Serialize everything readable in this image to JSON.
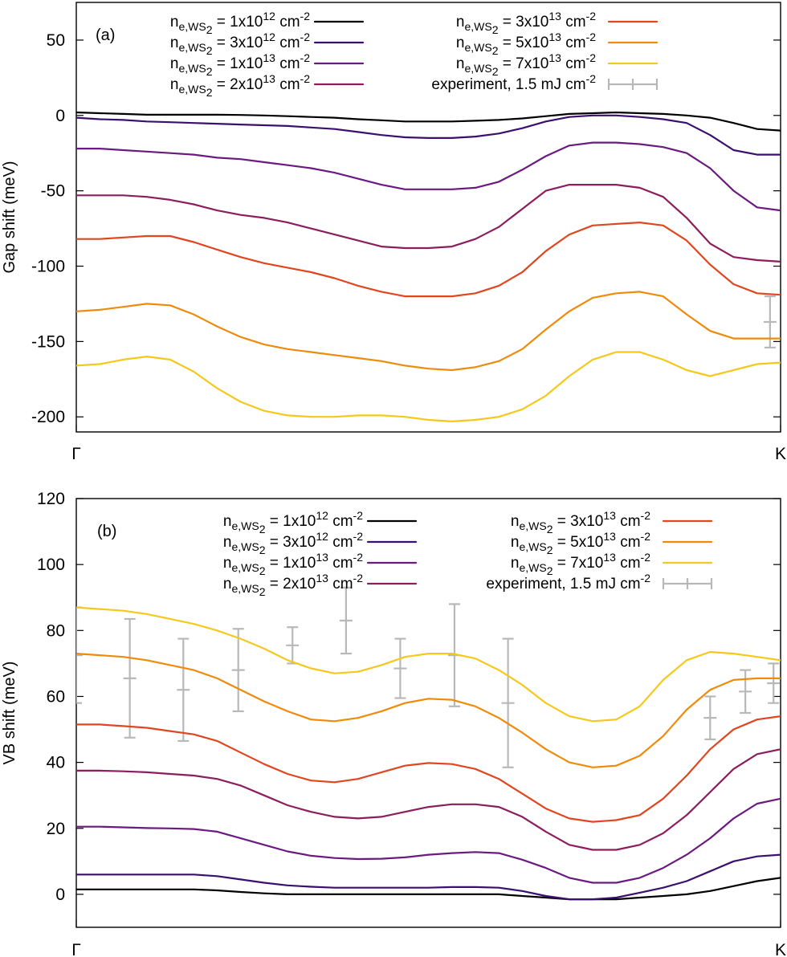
{
  "figure": {
    "panels": [
      "(a)",
      "(b)"
    ]
  },
  "chart_data": [
    {
      "type": "line",
      "panel_label": "(a)",
      "title": "",
      "xlabel": "",
      "ylabel": "Gap shift (meV)",
      "x_tick_labels": [
        "Γ",
        "K"
      ],
      "xlim": [
        0,
        1
      ],
      "ylim": [
        -210,
        75
      ],
      "y_ticks": [
        -200,
        -150,
        -100,
        -50,
        0,
        50
      ],
      "x": [
        0,
        0.0333,
        0.0667,
        0.1,
        0.1333,
        0.1667,
        0.2,
        0.2333,
        0.2667,
        0.3,
        0.3333,
        0.3667,
        0.4,
        0.4333,
        0.4667,
        0.5,
        0.5333,
        0.5667,
        0.6,
        0.6333,
        0.6667,
        0.7,
        0.7333,
        0.7667,
        0.8,
        0.8333,
        0.8667,
        0.9,
        0.9333,
        0.9667,
        1.0
      ],
      "series": [
        {
          "name_base": "n",
          "name_sub": "e,WS",
          "name_subsub": "2",
          "name_text": " = 1x10",
          "name_exp": "12",
          "name_unit": " cm",
          "name_unit_exp": "-2",
          "color": "#000000",
          "values": [
            2,
            1.5,
            1,
            0.5,
            0.5,
            0.5,
            0.5,
            0.3,
            0,
            -0.5,
            -1,
            -1.5,
            -2.5,
            -3.2,
            -4,
            -4,
            -4,
            -3.5,
            -3,
            -2,
            -0.5,
            1,
            1.5,
            2,
            1.5,
            1,
            0,
            -1.5,
            -5,
            -9,
            -10
          ]
        },
        {
          "name_base": "n",
          "name_sub": "e,WS",
          "name_subsub": "2",
          "name_text": " = 3x10",
          "name_exp": "12",
          "name_unit": " cm",
          "name_unit_exp": "-2",
          "color": "#3b0f70",
          "values": [
            -1.5,
            -2.5,
            -3,
            -4,
            -4.5,
            -5,
            -5.5,
            -6,
            -6.5,
            -7,
            -8,
            -9,
            -11,
            -13,
            -14.5,
            -15,
            -15,
            -14,
            -12,
            -8.5,
            -4,
            -1,
            0,
            0,
            -1,
            -2.5,
            -5,
            -13,
            -23,
            -26,
            -26
          ]
        },
        {
          "name_base": "n",
          "name_sub": "e,WS",
          "name_subsub": "2",
          "name_text": " = 1x10",
          "name_exp": "13",
          "name_unit": " cm",
          "name_unit_exp": "-2",
          "color": "#6a1a80",
          "values": [
            -22,
            -22,
            -23,
            -24,
            -25,
            -26,
            -28,
            -29,
            -31,
            -33,
            -35,
            -38,
            -42,
            -46,
            -49,
            -49,
            -49,
            -48,
            -44,
            -36,
            -27,
            -20,
            -18,
            -18,
            -19,
            -21,
            -25,
            -35,
            -50,
            -61,
            -63
          ]
        },
        {
          "name_base": "n",
          "name_sub": "e,WS",
          "name_subsub": "2",
          "name_text": " = 2x10",
          "name_exp": "13",
          "name_unit": " cm",
          "name_unit_exp": "-2",
          "color": "#8c1d5e",
          "values": [
            -53,
            -53,
            -53,
            -54,
            -56,
            -59,
            -63,
            -66,
            -68,
            -71,
            -75,
            -79,
            -83,
            -87,
            -88,
            -88,
            -87,
            -82,
            -74,
            -62,
            -50,
            -46,
            -46,
            -46,
            -48,
            -54,
            -68,
            -85,
            -94,
            -96,
            -97
          ]
        },
        {
          "name_base": "n",
          "name_sub": "e,WS",
          "name_subsub": "2",
          "name_text": " = 3x10",
          "name_exp": "13",
          "name_unit": " cm",
          "name_unit_exp": "-2",
          "color": "#e0461f",
          "values": [
            -82,
            -82,
            -81,
            -80,
            -80,
            -84,
            -89,
            -94,
            -98,
            -101,
            -104,
            -108,
            -113,
            -117,
            -120,
            -120,
            -120,
            -118,
            -113,
            -104,
            -90,
            -79,
            -73,
            -72,
            -71,
            -73,
            -83,
            -99,
            -112,
            -118,
            -119
          ]
        },
        {
          "name_base": "n",
          "name_sub": "e,WS",
          "name_subsub": "2",
          "name_text": " = 5x10",
          "name_exp": "13",
          "name_unit": " cm",
          "name_unit_exp": "-2",
          "color": "#f08a0a",
          "values": [
            -130,
            -129,
            -127,
            -125,
            -126,
            -132,
            -140,
            -147,
            -152,
            -155,
            -157,
            -159,
            -161,
            -163,
            -166,
            -168,
            -169,
            -167,
            -163,
            -155,
            -142,
            -130,
            -121,
            -118,
            -117,
            -120,
            -132,
            -143,
            -148,
            -148,
            -148
          ]
        },
        {
          "name_base": "n",
          "name_sub": "e,WS",
          "name_subsub": "2",
          "name_text": " = 7x10",
          "name_exp": "13",
          "name_unit": " cm",
          "name_unit_exp": "-2",
          "color": "#f5c81c",
          "values": [
            -166,
            -165,
            -162,
            -160,
            -162,
            -170,
            -181,
            -190,
            -196,
            -199,
            -200,
            -200,
            -199,
            -199,
            -200,
            -202,
            -203,
            -202,
            -200,
            -195,
            -186,
            -173,
            -162,
            -157,
            -157,
            -162,
            -169,
            -173,
            -169,
            -165,
            -164
          ]
        }
      ],
      "experiment": {
        "name_text": "experiment, 1.5 mJ cm",
        "name_exp": "-2",
        "color": "#b8b8b8",
        "points": [
          {
            "x": 0.985,
            "y": -137,
            "yerr": 17
          }
        ]
      }
    },
    {
      "type": "line",
      "panel_label": "(b)",
      "title": "",
      "xlabel": "",
      "ylabel": "VB shift (meV)",
      "x_tick_labels": [
        "Γ",
        "K"
      ],
      "xlim": [
        0,
        1
      ],
      "ylim": [
        -10,
        120
      ],
      "y_ticks": [
        0,
        20,
        40,
        60,
        80,
        100,
        120
      ],
      "x": [
        0,
        0.0333,
        0.0667,
        0.1,
        0.1333,
        0.1667,
        0.2,
        0.2333,
        0.2667,
        0.3,
        0.3333,
        0.3667,
        0.4,
        0.4333,
        0.4667,
        0.5,
        0.5333,
        0.5667,
        0.6,
        0.6333,
        0.6667,
        0.7,
        0.7333,
        0.7667,
        0.8,
        0.8333,
        0.8667,
        0.9,
        0.9333,
        0.9667,
        1.0
      ],
      "series": [
        {
          "name_base": "n",
          "name_sub": "e,WS",
          "name_subsub": "2",
          "name_text": " = 1x10",
          "name_exp": "12",
          "name_unit": " cm",
          "name_unit_exp": "-2",
          "color": "#000000",
          "values": [
            1.5,
            1.5,
            1.5,
            1.5,
            1.5,
            1.5,
            1.2,
            0.7,
            0.3,
            0,
            0,
            0,
            0,
            0,
            0,
            0,
            0,
            0,
            0,
            -0.5,
            -1,
            -1.5,
            -1.5,
            -1.5,
            -1,
            -0.5,
            0,
            1,
            2.5,
            4,
            5
          ]
        },
        {
          "name_base": "n",
          "name_sub": "e,WS",
          "name_subsub": "2",
          "name_text": " = 3x10",
          "name_exp": "12",
          "name_unit": " cm",
          "name_unit_exp": "-2",
          "color": "#3b0f70",
          "values": [
            6,
            6,
            6,
            6,
            6,
            6,
            5.5,
            4.5,
            3.5,
            2.7,
            2.3,
            2,
            2,
            2,
            2,
            2,
            2.2,
            2.2,
            2,
            1,
            -0.5,
            -1.5,
            -1.5,
            -1,
            0.5,
            2,
            4,
            7,
            10,
            11.5,
            12
          ]
        },
        {
          "name_base": "n",
          "name_sub": "e,WS",
          "name_subsub": "2",
          "name_text": " = 1x10",
          "name_exp": "13",
          "name_unit": " cm",
          "name_unit_exp": "-2",
          "color": "#6a1a80",
          "values": [
            20.5,
            20.5,
            20.3,
            20.1,
            20,
            19.8,
            19,
            17,
            15,
            13,
            11.7,
            11,
            10.7,
            10.8,
            11.2,
            12,
            12.5,
            12.8,
            12.5,
            10.5,
            8,
            5,
            3.5,
            3.5,
            5,
            8,
            12,
            17,
            23,
            27.5,
            29
          ]
        },
        {
          "name_base": "n",
          "name_sub": "e,WS",
          "name_subsub": "2",
          "name_text": " = 2x10",
          "name_exp": "13",
          "name_unit": " cm",
          "name_unit_exp": "-2",
          "color": "#8c1d5e",
          "values": [
            37.5,
            37.5,
            37.3,
            37,
            36.5,
            36,
            35,
            33,
            30,
            27,
            25,
            23.5,
            23,
            23.5,
            25,
            26.5,
            27.3,
            27.3,
            26.5,
            23.5,
            19,
            15,
            13.5,
            13.5,
            15,
            18.5,
            24,
            31,
            38,
            42.5,
            44
          ]
        },
        {
          "name_base": "n",
          "name_sub": "e,WS",
          "name_subsub": "2",
          "name_text": " = 3x10",
          "name_exp": "13",
          "name_unit": " cm",
          "name_unit_exp": "-2",
          "color": "#e0461f",
          "values": [
            51.5,
            51.5,
            51,
            50.5,
            49.5,
            48.5,
            46.5,
            43,
            39.5,
            36.5,
            34.5,
            34,
            35,
            37,
            39,
            39.8,
            39.5,
            38,
            35,
            30.5,
            26,
            23,
            22,
            22.5,
            24,
            29,
            36,
            44,
            50,
            53,
            54
          ]
        },
        {
          "name_base": "n",
          "name_sub": "e,WS",
          "name_subsub": "2",
          "name_text": " = 5x10",
          "name_exp": "13",
          "name_unit": " cm",
          "name_unit_exp": "-2",
          "color": "#f08a0a",
          "values": [
            73,
            72.5,
            72,
            71,
            69.5,
            68,
            65.5,
            62,
            58.5,
            55.5,
            53,
            52.5,
            53.5,
            55.5,
            58,
            59.3,
            59,
            57,
            53.5,
            49,
            44,
            40,
            38.5,
            39,
            42,
            48,
            56,
            62,
            65,
            65.5,
            65.5
          ]
        },
        {
          "name_base": "n",
          "name_sub": "e,WS",
          "name_subsub": "2",
          "name_text": " = 7x10",
          "name_exp": "13",
          "name_unit": " cm",
          "name_unit_exp": "-2",
          "color": "#f5c81c",
          "values": [
            87,
            86.5,
            86,
            85,
            83.5,
            82,
            80,
            77.5,
            74.5,
            71,
            68.5,
            67,
            67.5,
            69.5,
            72,
            73,
            73,
            71.5,
            68,
            63.5,
            58,
            54,
            52.5,
            53,
            57,
            65,
            71,
            73.5,
            73,
            72,
            71
          ]
        }
      ],
      "experiment": {
        "name_text": "experiment, 1.5 mJ cm",
        "name_exp": "-2",
        "color": "#b8b8b8",
        "points": [
          {
            "x": 0.0,
            "y": 72.5,
            "yerr": 14.5
          },
          {
            "x": 0.076,
            "y": 65.5,
            "yerr": 18
          },
          {
            "x": 0.152,
            "y": 62,
            "yerr": 15.5
          },
          {
            "x": 0.23,
            "y": 68,
            "yerr": 12.5
          },
          {
            "x": 0.307,
            "y": 75.5,
            "yerr": 5.5
          },
          {
            "x": 0.383,
            "y": 83,
            "yerr": 10
          },
          {
            "x": 0.46,
            "y": 68.5,
            "yerr": 9
          },
          {
            "x": 0.537,
            "y": 72.5,
            "yerr": 15.5
          },
          {
            "x": 0.613,
            "y": 58,
            "yerr": 19.5
          },
          {
            "x": 0.9,
            "y": 53.5,
            "yerr": 6.5
          },
          {
            "x": 0.95,
            "y": 61.5,
            "yerr": 6.5
          },
          {
            "x": 0.99,
            "y": 64,
            "yerr": 6
          }
        ]
      }
    }
  ]
}
